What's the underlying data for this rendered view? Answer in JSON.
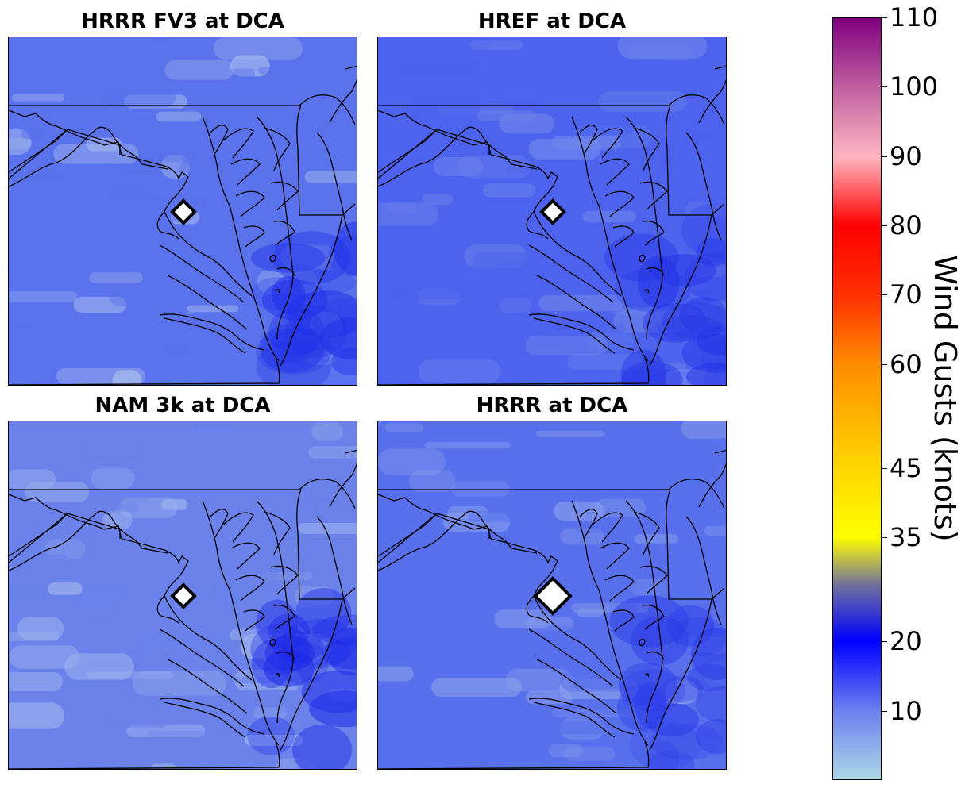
{
  "panels": [
    {
      "title": "HRRR FV3 at DCA",
      "base": "#5a73ec",
      "light": "#a9bcee",
      "dark": "#1f2fe8",
      "marker": "small"
    },
    {
      "title": "HREF at DCA",
      "base": "#4d63ee",
      "light": "#6f86ea",
      "dark": "#2332e6",
      "marker": "small"
    },
    {
      "title": "NAM 3k at DCA",
      "base": "#6a82ea",
      "light": "#9fb3ee",
      "dark": "#1b28e8",
      "marker": "small"
    },
    {
      "title": "HRRR at DCA",
      "base": "#5870ec",
      "light": "#8aa0ec",
      "dark": "#2a3ae8",
      "marker": "large"
    }
  ],
  "colorbar": {
    "label": "Wind Gusts (knots)",
    "ticks": [
      "110",
      "100",
      "90",
      "80",
      "70",
      "60",
      "45",
      "35",
      "20",
      "10"
    ],
    "tick_values": [
      110,
      100,
      90,
      80,
      70,
      60,
      45,
      35,
      20,
      10
    ],
    "min": 0,
    "max": 110,
    "colors": [
      {
        "v": 0,
        "c": "#add8e6"
      },
      {
        "v": 10,
        "c": "#6b7ff0"
      },
      {
        "v": 20,
        "c": "#0000ff"
      },
      {
        "v": 28,
        "c": "#6f6f9f"
      },
      {
        "v": 35,
        "c": "#ffff00"
      },
      {
        "v": 45,
        "c": "#ffd700"
      },
      {
        "v": 60,
        "c": "#ff8c00"
      },
      {
        "v": 70,
        "c": "#ff3000"
      },
      {
        "v": 80,
        "c": "#ff0000"
      },
      {
        "v": 90,
        "c": "#ffb6c1"
      },
      {
        "v": 100,
        "c": "#c060a0"
      },
      {
        "v": 110,
        "c": "#800080"
      }
    ]
  }
}
